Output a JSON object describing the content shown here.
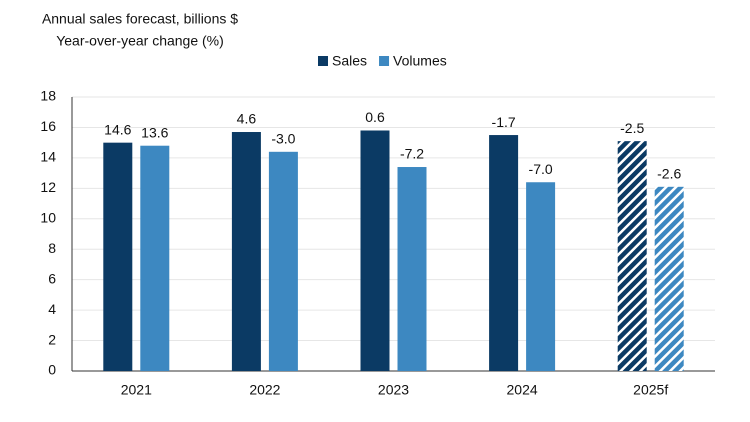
{
  "chart_data": {
    "type": "bar",
    "title": "Annual sales forecast, billions $",
    "subtitle": "Year-over-year change (%)",
    "categories": [
      "2021",
      "2022",
      "2023",
      "2024",
      "2025f"
    ],
    "series": [
      {
        "name": "Sales",
        "color": "#0b3a64",
        "values": [
          15.0,
          15.7,
          15.8,
          15.5,
          15.1
        ],
        "change_labels": [
          "14.6",
          "4.6",
          "0.6",
          "-1.7",
          "-2.5"
        ]
      },
      {
        "name": "Volumes",
        "color": "#3d88c1",
        "values": [
          14.8,
          14.4,
          13.4,
          12.4,
          12.1
        ],
        "change_labels": [
          "13.6",
          "-3.0",
          "-7.2",
          "-7.0",
          "-2.6"
        ]
      }
    ],
    "hatched": [
      false,
      false,
      false,
      false,
      true
    ],
    "ylim": [
      0,
      18
    ],
    "yticks": [
      0,
      2,
      4,
      6,
      8,
      10,
      12,
      14,
      16,
      18
    ],
    "grid": true
  }
}
